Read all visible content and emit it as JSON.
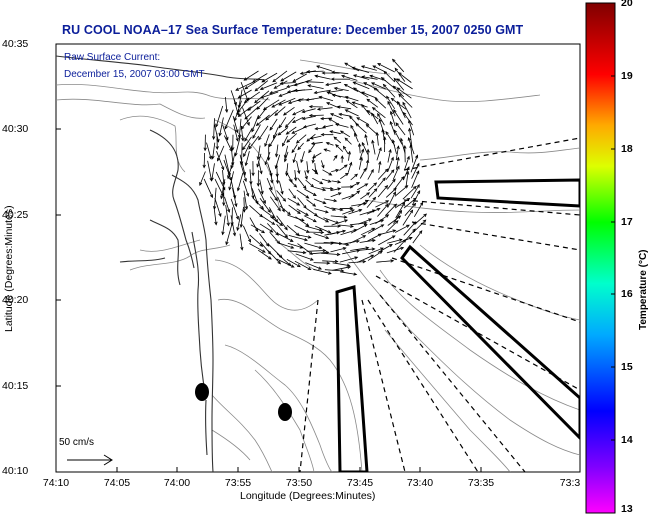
{
  "title": "RU COOL  NOAA–17  Sea Surface Temperature:  December 15, 2007 0250 GMT",
  "current_label": "Raw Surface Current:",
  "current_time": "December 15, 2007 03:00 GMT",
  "scale_label": "50 cm/s",
  "xlabel": "Longitude (Degrees:Minutes)",
  "ylabel": "Latitude (Degrees:Minutes)",
  "colorbar_label": "Temperature (°C)",
  "x_ticks": [
    "74:10",
    "74:05",
    "74:00",
    "73:55",
    "73:50",
    "73:45",
    "73:40",
    "73:35",
    "73:3"
  ],
  "y_ticks": [
    "40:35",
    "40:30",
    "40:25",
    "40:20",
    "40:15",
    "40:10"
  ],
  "colorbar_ticks": [
    "20",
    "19",
    "18",
    "17",
    "16",
    "15",
    "14",
    "13"
  ],
  "colorbar_colors": [
    "#ff00ff",
    "#0000ff",
    "#00ffff",
    "#00ff00",
    "#ffff00",
    "#ffa500",
    "#ff0000",
    "#800000"
  ]
}
